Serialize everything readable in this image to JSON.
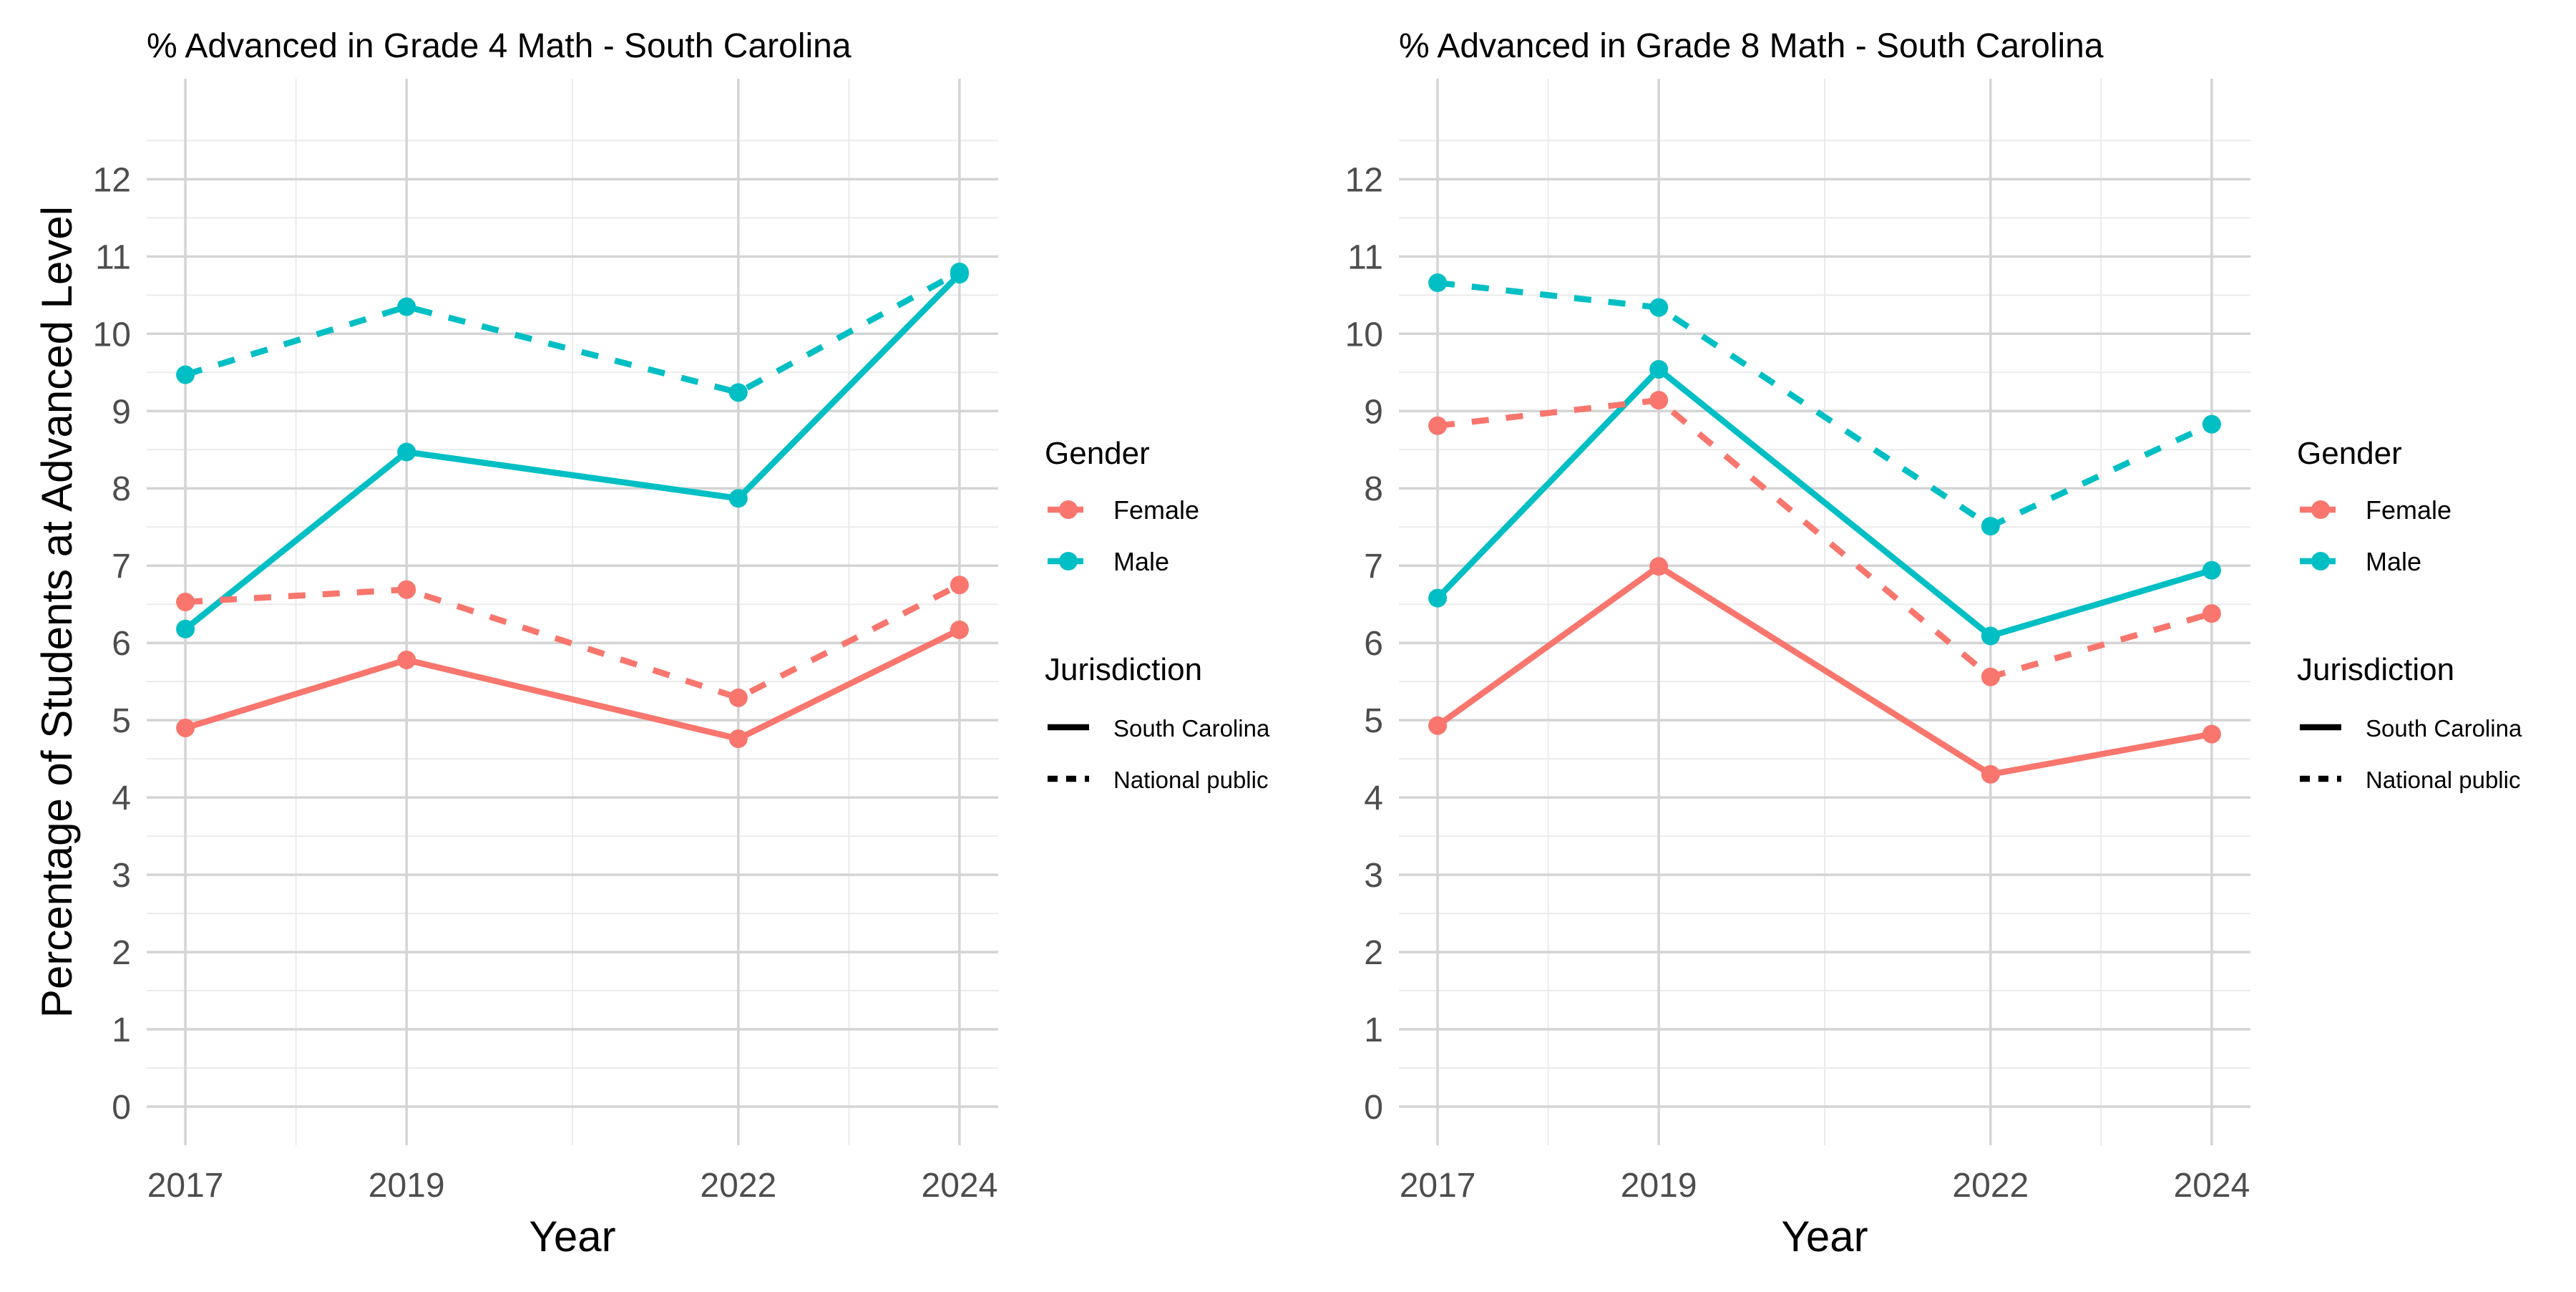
{
  "figure": {
    "ylabel": "Percentage of Students at Advanced Level"
  },
  "legend": {
    "gender_title": "Gender",
    "gender_items": [
      {
        "label": "Female",
        "color": "#F8766D"
      },
      {
        "label": "Male",
        "color": "#00BFC4"
      }
    ],
    "jurisdiction_title": "Jurisdiction",
    "jurisdiction_items": [
      {
        "label": "South Carolina",
        "linetype": "solid"
      },
      {
        "label": "National public",
        "linetype": "dashed"
      }
    ]
  },
  "chart_data": [
    {
      "type": "line",
      "title": "% Advanced in Grade 4 Math - South Carolina",
      "xlabel": "Year",
      "ylabel": "Percentage of Students at Advanced Level",
      "x": [
        2017,
        2019,
        2022,
        2024
      ],
      "xlim": [
        2016.65,
        2024.35
      ],
      "ylim": [
        -0.5,
        13.3
      ],
      "xticks": [
        2017,
        2019,
        2022,
        2024
      ],
      "yticks": [
        0,
        1,
        2,
        3,
        4,
        5,
        6,
        7,
        8,
        9,
        10,
        11,
        12
      ],
      "grid": true,
      "series": [
        {
          "name": "Female",
          "jurisdiction": "South Carolina",
          "color": "#F8766D",
          "linetype": "solid",
          "values": [
            4.9,
            5.78,
            4.76,
            6.17
          ]
        },
        {
          "name": "Male",
          "jurisdiction": "South Carolina",
          "color": "#00BFC4",
          "linetype": "solid",
          "values": [
            6.18,
            8.47,
            7.87,
            10.77
          ]
        },
        {
          "name": "Female",
          "jurisdiction": "National public",
          "color": "#F8766D",
          "linetype": "dashed",
          "values": [
            6.53,
            6.69,
            5.29,
            6.75
          ]
        },
        {
          "name": "Male",
          "jurisdiction": "National public",
          "color": "#00BFC4",
          "linetype": "dashed",
          "values": [
            9.47,
            10.35,
            9.24,
            10.8
          ]
        }
      ]
    },
    {
      "type": "line",
      "title": "% Advanced in Grade 8 Math - South Carolina",
      "xlabel": "Year",
      "ylabel": "",
      "x": [
        2017,
        2019,
        2022,
        2024
      ],
      "xlim": [
        2016.65,
        2024.35
      ],
      "ylim": [
        -0.5,
        13.3
      ],
      "xticks": [
        2017,
        2019,
        2022,
        2024
      ],
      "yticks": [
        0,
        1,
        2,
        3,
        4,
        5,
        6,
        7,
        8,
        9,
        10,
        11,
        12
      ],
      "grid": true,
      "series": [
        {
          "name": "Female",
          "jurisdiction": "South Carolina",
          "color": "#F8766D",
          "linetype": "solid",
          "values": [
            4.93,
            6.99,
            4.3,
            4.82
          ]
        },
        {
          "name": "Male",
          "jurisdiction": "South Carolina",
          "color": "#00BFC4",
          "linetype": "solid",
          "values": [
            6.58,
            9.54,
            6.09,
            6.94
          ]
        },
        {
          "name": "Female",
          "jurisdiction": "National public",
          "color": "#F8766D",
          "linetype": "dashed",
          "values": [
            8.81,
            9.14,
            5.56,
            6.38
          ]
        },
        {
          "name": "Male",
          "jurisdiction": "National public",
          "color": "#00BFC4",
          "linetype": "dashed",
          "values": [
            10.66,
            10.34,
            7.51,
            8.83
          ]
        }
      ]
    }
  ]
}
